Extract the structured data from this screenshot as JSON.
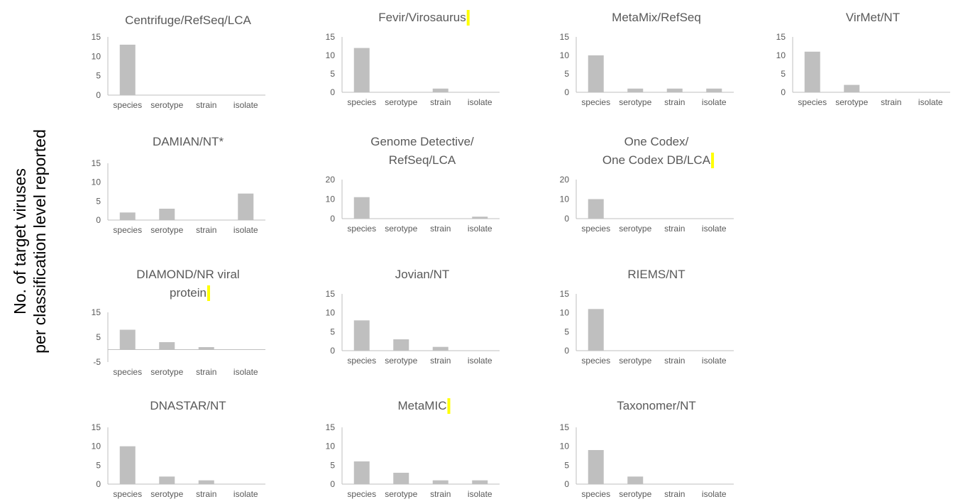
{
  "figure": {
    "ylabel_lines": [
      "No. of target viruses",
      "per classification level reported"
    ],
    "bar_color": "#bfbfbf",
    "axis_color": "#bfbfbf",
    "highlight_color": "#ffff00"
  },
  "chart_data": [
    {
      "type": "bar",
      "title_lines": [
        "Centrifuge/RefSeq/LCA"
      ],
      "highlight": false,
      "categories": [
        "species",
        "serotype",
        "strain",
        "isolate"
      ],
      "values": [
        13,
        0,
        0,
        0
      ],
      "ylim": [
        0,
        15
      ],
      "yticks": [
        "0",
        "5",
        "10",
        "15"
      ]
    },
    {
      "type": "bar",
      "title_lines": [
        "Fevir/Virosaurus"
      ],
      "highlight": true,
      "categories": [
        "species",
        "serotype",
        "strain",
        "isolate"
      ],
      "values": [
        12,
        0,
        1,
        0
      ],
      "ylim": [
        0,
        15
      ],
      "yticks": [
        "0",
        "5",
        "10",
        "15"
      ]
    },
    {
      "type": "bar",
      "title_lines": [
        "MetaMix/RefSeq"
      ],
      "highlight": false,
      "categories": [
        "species",
        "serotype",
        "strain",
        "isolate"
      ],
      "values": [
        10,
        1,
        1,
        1
      ],
      "ylim": [
        0,
        15
      ],
      "yticks": [
        "0",
        "5",
        "10",
        "15"
      ]
    },
    {
      "type": "bar",
      "title_lines": [
        "VirMet/NT"
      ],
      "highlight": false,
      "categories": [
        "species",
        "serotype",
        "strain",
        "isolate"
      ],
      "values": [
        11,
        2,
        0,
        0
      ],
      "ylim": [
        0,
        15
      ],
      "yticks": [
        "0",
        "5",
        "10",
        "15"
      ]
    },
    {
      "type": "bar",
      "title_lines": [
        "DAMIAN/NT*"
      ],
      "highlight": false,
      "categories": [
        "species",
        "serotype",
        "strain",
        "isolate"
      ],
      "values": [
        2,
        3,
        0,
        7
      ],
      "ylim": [
        0,
        15
      ],
      "yticks": [
        "0",
        "5",
        "10",
        "15"
      ]
    },
    {
      "type": "bar",
      "title_lines": [
        "Genome Detective/",
        "RefSeq/LCA"
      ],
      "highlight": false,
      "categories": [
        "species",
        "serotype",
        "strain",
        "isolate"
      ],
      "values": [
        11,
        0,
        0,
        1
      ],
      "ylim": [
        0,
        20
      ],
      "yticks": [
        "0",
        "10",
        "20"
      ]
    },
    {
      "type": "bar",
      "title_lines": [
        "One Codex/",
        "One Codex DB/LCA"
      ],
      "highlight": true,
      "categories": [
        "species",
        "serotype",
        "strain",
        "isolate"
      ],
      "values": [
        10,
        0,
        0,
        0
      ],
      "ylim": [
        0,
        20
      ],
      "yticks": [
        "0",
        "10",
        "20"
      ]
    },
    {
      "type": "bar",
      "title_lines": [
        "DIAMOND/NR viral",
        "protein"
      ],
      "highlight": true,
      "categories": [
        "species",
        "serotype",
        "strain",
        "isolate"
      ],
      "values": [
        8,
        3,
        1,
        0
      ],
      "ylim": [
        -5,
        15
      ],
      "yticks": [
        "-5",
        "5",
        "15"
      ]
    },
    {
      "type": "bar",
      "title_lines": [
        "Jovian/NT"
      ],
      "highlight": false,
      "categories": [
        "species",
        "serotype",
        "strain",
        "isolate"
      ],
      "values": [
        8,
        3,
        1,
        0
      ],
      "ylim": [
        0,
        15
      ],
      "yticks": [
        "0",
        "5",
        "10",
        "15"
      ]
    },
    {
      "type": "bar",
      "title_lines": [
        "RIEMS/NT"
      ],
      "highlight": false,
      "categories": [
        "species",
        "serotype",
        "strain",
        "isolate"
      ],
      "values": [
        11,
        0,
        0,
        0
      ],
      "ylim": [
        0,
        15
      ],
      "yticks": [
        "0",
        "5",
        "10",
        "15"
      ]
    },
    {
      "type": "bar",
      "title_lines": [
        "DNASTAR/NT"
      ],
      "highlight": false,
      "categories": [
        "species",
        "serotype",
        "strain",
        "isolate"
      ],
      "values": [
        10,
        2,
        1,
        0
      ],
      "ylim": [
        0,
        15
      ],
      "yticks": [
        "0",
        "5",
        "10",
        "15"
      ]
    },
    {
      "type": "bar",
      "title_lines": [
        "MetaMIC"
      ],
      "highlight": true,
      "categories": [
        "species",
        "serotype",
        "strain",
        "isolate"
      ],
      "values": [
        6,
        3,
        1,
        1
      ],
      "ylim": [
        0,
        15
      ],
      "yticks": [
        "0",
        "5",
        "10",
        "15"
      ]
    },
    {
      "type": "bar",
      "title_lines": [
        "Taxonomer/NT"
      ],
      "highlight": false,
      "categories": [
        "species",
        "serotype",
        "strain",
        "isolate"
      ],
      "values": [
        9,
        2,
        0,
        0
      ],
      "ylim": [
        0,
        15
      ],
      "yticks": [
        "0",
        "5",
        "10",
        "15"
      ]
    }
  ]
}
